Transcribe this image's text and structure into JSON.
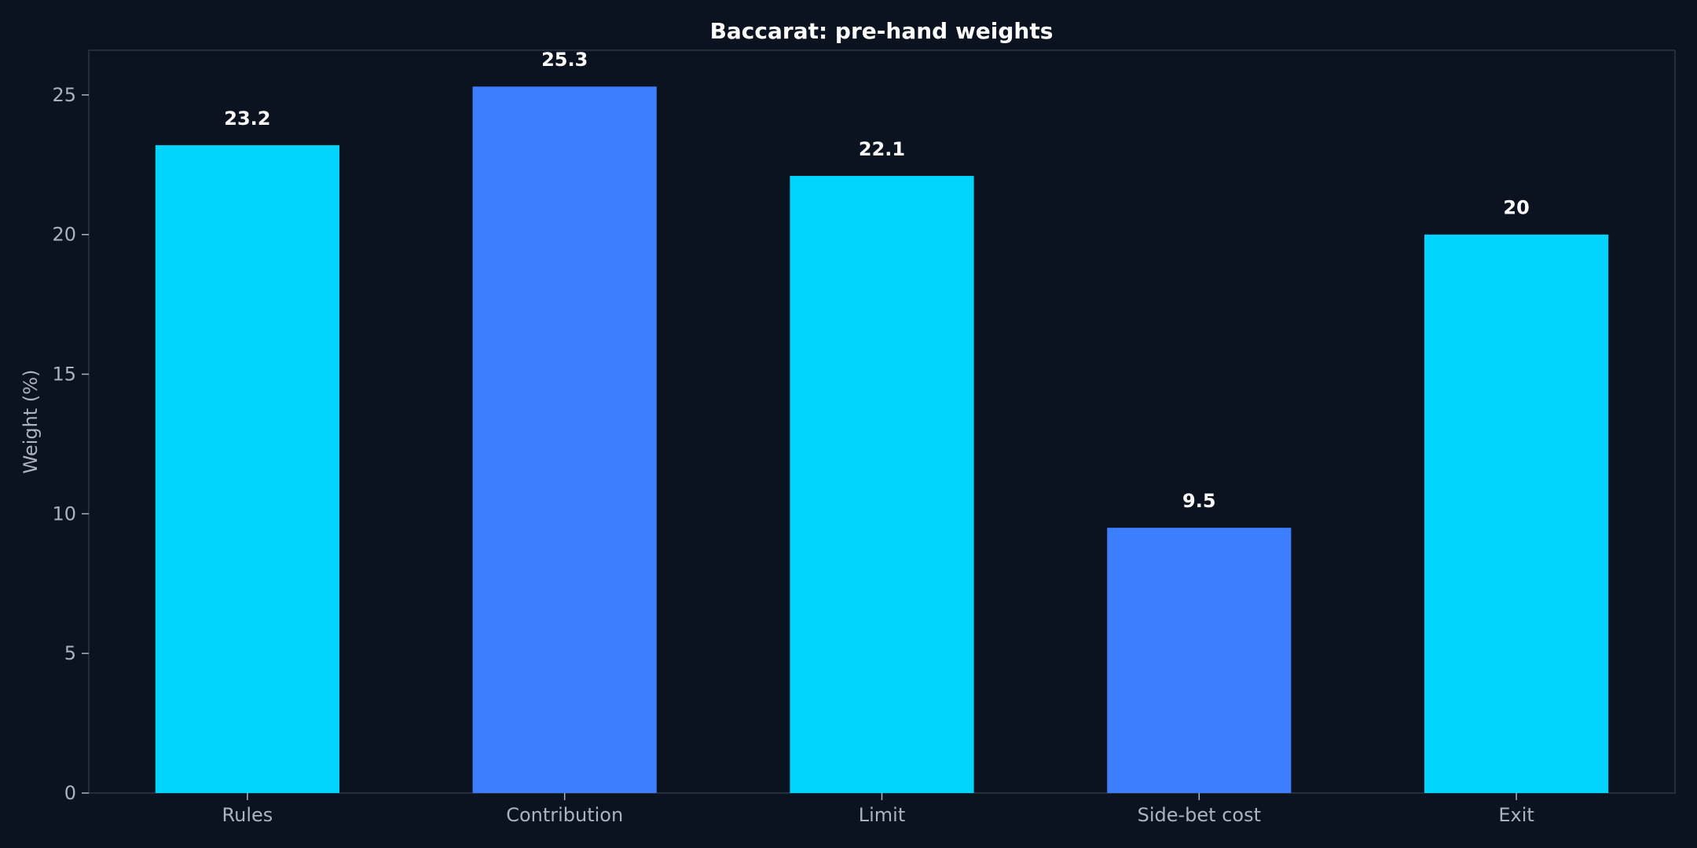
{
  "chart_data": {
    "type": "bar",
    "title": "Baccarat: pre-hand weights",
    "xlabel": "",
    "ylabel": "Weight (%)",
    "categories": [
      "Rules",
      "Contribution",
      "Limit",
      "Side-bet cost",
      "Exit"
    ],
    "values": [
      23.2,
      25.3,
      22.1,
      9.5,
      20
    ],
    "value_labels": [
      "23.2",
      "25.3",
      "22.1",
      "9.5",
      "20"
    ],
    "bar_colors": [
      "#00d4ff",
      "#3d7eff",
      "#00d4ff",
      "#3d7eff",
      "#00d4ff"
    ],
    "ylim": [
      0,
      26.6
    ],
    "yticks": [
      0,
      5,
      10,
      15,
      20,
      25
    ],
    "grid": false,
    "legend": "none"
  },
  "colors": {
    "background": "#0c1320",
    "frame": "#2c3646",
    "tick_text": "#a9b3c1",
    "title_text": "#ffffff"
  }
}
